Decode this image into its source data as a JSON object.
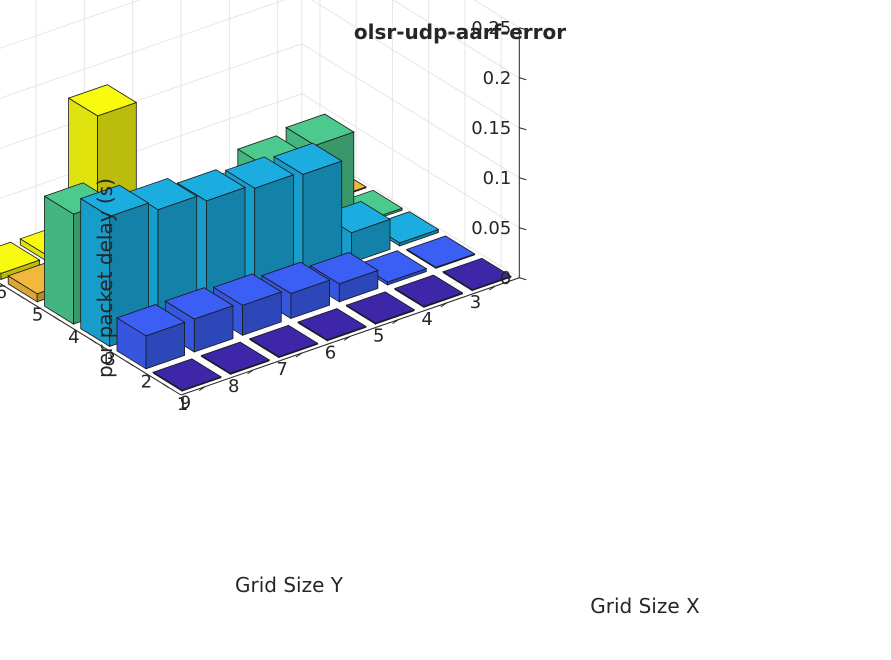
{
  "chart_data": {
    "type": "bar3",
    "title": "olsr-udp-aarf-error",
    "xlabel": "Grid Size X",
    "ylabel": "Grid Size Y",
    "zlabel": "per packet delay (s)",
    "x_ticks": [
      "1",
      "2",
      "3",
      "4",
      "5",
      "6"
    ],
    "y_ticks": [
      "3",
      "4",
      "5",
      "6",
      "7",
      "8",
      "9"
    ],
    "z_ticks": [
      "0",
      "0.05",
      "0.1",
      "0.15",
      "0.2",
      "0.25"
    ],
    "zlim": [
      0,
      0.25
    ],
    "grid": true,
    "series": [
      {
        "x": 1,
        "color": "#3e26a8",
        "values": [
          0.001,
          0.001,
          0.001,
          0.001,
          0.001,
          0.001,
          0.001
        ]
      },
      {
        "x": 2,
        "color": "#3b5ff5",
        "values": [
          0.001,
          0.003,
          0.018,
          0.025,
          0.03,
          0.033,
          0.033
        ]
      },
      {
        "x": 3,
        "color": "#1bade0",
        "values": [
          0.003,
          0.03,
          0.105,
          0.108,
          0.112,
          0.12,
          0.13
        ]
      },
      {
        "x": 4,
        "color": "#4cc98c",
        "values": [
          0.002,
          0.095,
          0.09,
          0.02,
          0.015,
          0.012,
          0.11
        ]
      },
      {
        "x": 5,
        "color": "#f1b93b",
        "values": [
          0.001,
          0.001,
          0.001,
          0.001,
          0.001,
          0.008,
          0.008
        ]
      },
      {
        "x": 6,
        "color": "#f9fb0f",
        "values": [
          0.001,
          0.001,
          0.001,
          0.001,
          0.13,
          0.006,
          0.006
        ]
      }
    ]
  }
}
